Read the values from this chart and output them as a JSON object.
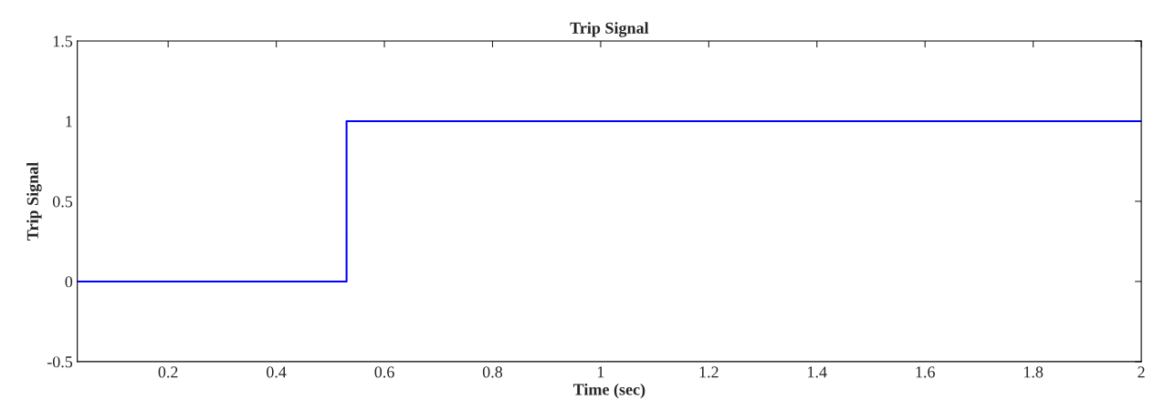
{
  "chart_data": {
    "type": "step",
    "title": "Trip Signal",
    "xlabel": "Time (sec)",
    "ylabel": "Trip Signal",
    "x": [
      0.032,
      0.53,
      2
    ],
    "series": [
      {
        "color": "#0000ff",
        "values": [
          0,
          1,
          1
        ]
      }
    ],
    "xlim": [
      0.032,
      2
    ],
    "ylim": [
      -0.5,
      1.5
    ],
    "xticks": [
      0.2,
      0.4,
      0.6,
      0.8,
      1,
      1.2,
      1.4,
      1.6,
      1.8,
      2
    ],
    "yticks": [
      -0.5,
      0,
      0.5,
      1,
      1.5
    ],
    "grid": false,
    "line_style": "solid"
  }
}
